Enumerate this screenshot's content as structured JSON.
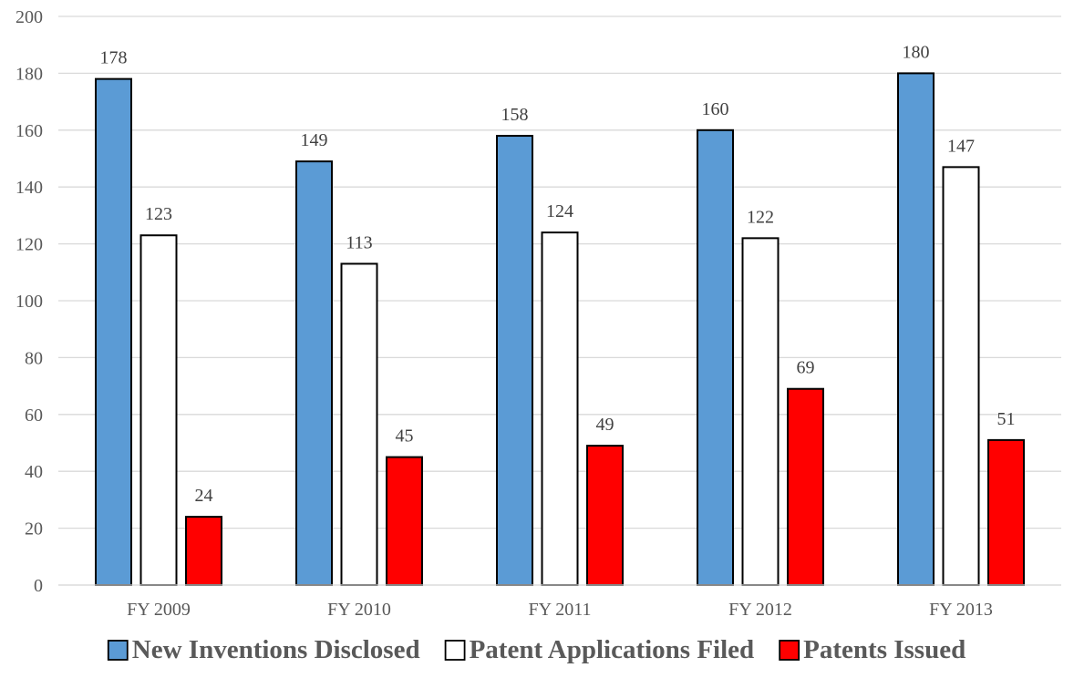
{
  "chart_data": {
    "type": "bar",
    "title": "",
    "xlabel": "",
    "ylabel": "",
    "categories": [
      "FY 2009",
      "FY 2010",
      "FY 2011",
      "FY 2012",
      "FY 2013"
    ],
    "series": [
      {
        "name": "New Inventions Disclosed",
        "values": [
          178,
          149,
          158,
          160,
          180
        ],
        "color": "#5B9BD5"
      },
      {
        "name": "Patent Applications Filed",
        "values": [
          123,
          113,
          124,
          122,
          147
        ],
        "color": "#FFFFFF"
      },
      {
        "name": "Patents Issued",
        "values": [
          24,
          45,
          49,
          69,
          51
        ],
        "color": "#FF0000"
      }
    ],
    "ylim": [
      0,
      200
    ],
    "yticks": [
      0,
      20,
      40,
      60,
      80,
      100,
      120,
      140,
      160,
      180,
      200
    ],
    "grid": true,
    "legend_position": "bottom",
    "data_labels": true,
    "colors": {
      "bar_outline": "#000000",
      "gridline": "#D9D9D9",
      "tick_text": "#595959"
    }
  }
}
